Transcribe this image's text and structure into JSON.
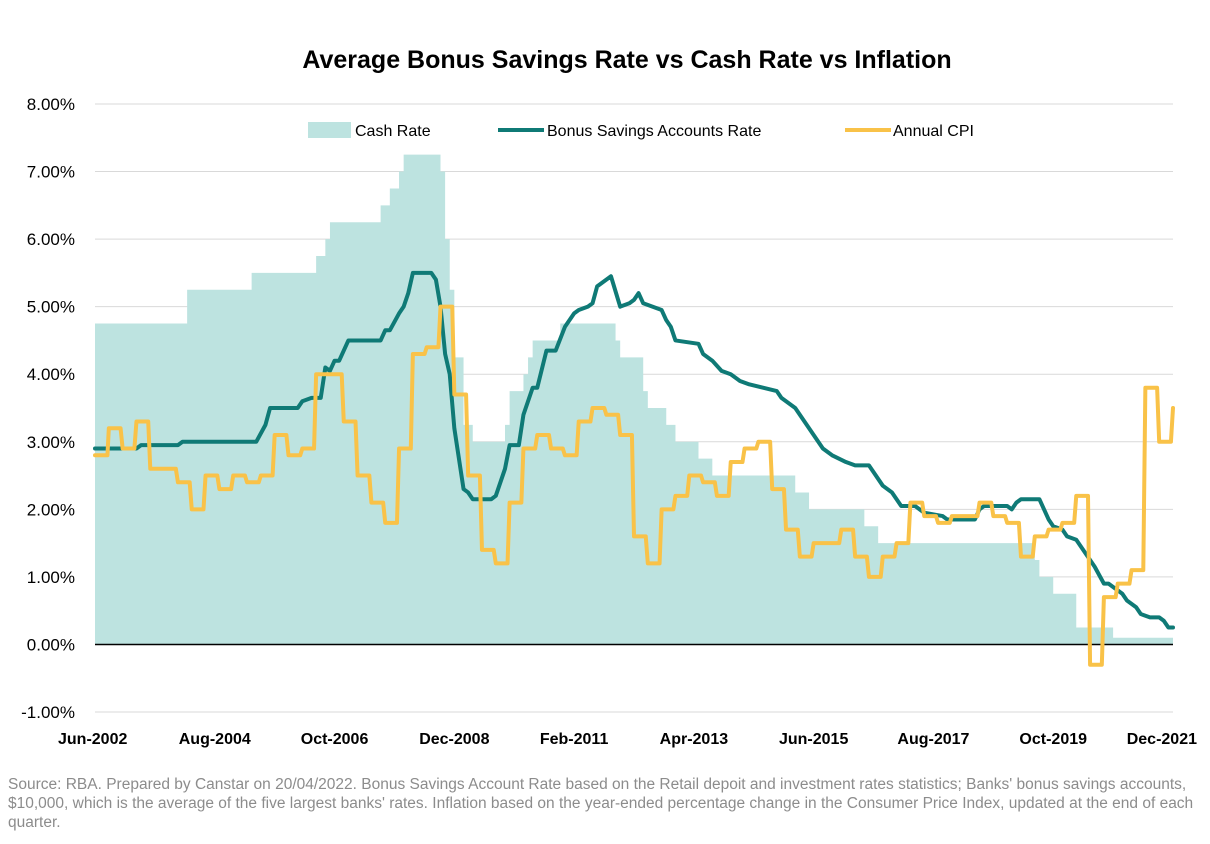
{
  "chart_data": {
    "type": "line",
    "title": "Average Bonus Savings Rate vs Cash Rate vs Inflation",
    "xlabel": "",
    "ylabel": "",
    "ylim": [
      -0.01,
      0.08
    ],
    "y_ticks": [
      {
        "value": -0.01,
        "label": "-1.00%"
      },
      {
        "value": 0.0,
        "label": "0.00%"
      },
      {
        "value": 0.01,
        "label": "1.00%"
      },
      {
        "value": 0.02,
        "label": "2.00%"
      },
      {
        "value": 0.03,
        "label": "3.00%"
      },
      {
        "value": 0.04,
        "label": "4.00%"
      },
      {
        "value": 0.05,
        "label": "5.00%"
      },
      {
        "value": 0.06,
        "label": "6.00%"
      },
      {
        "value": 0.07,
        "label": "7.00%"
      },
      {
        "value": 0.08,
        "label": "8.00%"
      }
    ],
    "x_range": [
      "2002-06",
      "2021-12"
    ],
    "x_ticks": [
      {
        "date": "2002-06",
        "label": "Jun-2002"
      },
      {
        "date": "2004-08",
        "label": "Aug-2004"
      },
      {
        "date": "2006-10",
        "label": "Oct-2006"
      },
      {
        "date": "2008-12",
        "label": "Dec-2008"
      },
      {
        "date": "2011-02",
        "label": "Feb-2011"
      },
      {
        "date": "2013-04",
        "label": "Apr-2013"
      },
      {
        "date": "2015-06",
        "label": "Jun-2015"
      },
      {
        "date": "2017-08",
        "label": "Aug-2017"
      },
      {
        "date": "2019-10",
        "label": "Oct-2019"
      },
      {
        "date": "2021-12",
        "label": "Dec-2021"
      }
    ],
    "grid": true,
    "legend_position": "top",
    "series": [
      {
        "name": "Cash Rate",
        "type": "area",
        "color": "#bde3e0",
        "points": [
          [
            "2002-06",
            0.0475
          ],
          [
            "2003-12",
            0.0475
          ],
          [
            "2004-02",
            0.0525
          ],
          [
            "2005-02",
            0.0525
          ],
          [
            "2005-04",
            0.055
          ],
          [
            "2006-05",
            0.055
          ],
          [
            "2006-06",
            0.0575
          ],
          [
            "2006-08",
            0.06
          ],
          [
            "2006-09",
            0.0625
          ],
          [
            "2007-07",
            0.0625
          ],
          [
            "2007-08",
            0.065
          ],
          [
            "2007-10",
            0.0675
          ],
          [
            "2007-12",
            0.07
          ],
          [
            "2008-01",
            0.0725
          ],
          [
            "2008-08",
            0.0725
          ],
          [
            "2008-09",
            0.07
          ],
          [
            "2008-10",
            0.06
          ],
          [
            "2008-11",
            0.0525
          ],
          [
            "2008-12",
            0.0425
          ],
          [
            "2009-02",
            0.0325
          ],
          [
            "2009-04",
            0.03
          ],
          [
            "2009-10",
            0.03
          ],
          [
            "2009-11",
            0.0325
          ],
          [
            "2009-12",
            0.0375
          ],
          [
            "2010-03",
            0.04
          ],
          [
            "2010-04",
            0.0425
          ],
          [
            "2010-05",
            0.045
          ],
          [
            "2010-11",
            0.0475
          ],
          [
            "2011-10",
            0.0475
          ],
          [
            "2011-11",
            0.045
          ],
          [
            "2011-12",
            0.0425
          ],
          [
            "2012-05",
            0.0375
          ],
          [
            "2012-06",
            0.035
          ],
          [
            "2012-10",
            0.0325
          ],
          [
            "2012-12",
            0.03
          ],
          [
            "2013-05",
            0.0275
          ],
          [
            "2013-08",
            0.025
          ],
          [
            "2015-01",
            0.025
          ],
          [
            "2015-02",
            0.0225
          ],
          [
            "2015-05",
            0.02
          ],
          [
            "2016-04",
            0.02
          ],
          [
            "2016-05",
            0.0175
          ],
          [
            "2016-08",
            0.015
          ],
          [
            "2019-05",
            0.015
          ],
          [
            "2019-06",
            0.0125
          ],
          [
            "2019-07",
            0.01
          ],
          [
            "2019-09",
            0.01
          ],
          [
            "2019-10",
            0.0075
          ],
          [
            "2020-02",
            0.0075
          ],
          [
            "2020-03",
            0.0025
          ],
          [
            "2020-10",
            0.0025
          ],
          [
            "2020-11",
            0.001
          ],
          [
            "2021-12",
            0.001
          ]
        ]
      },
      {
        "name": "Bonus Savings Accounts Rate",
        "type": "line",
        "color": "#0f7a76",
        "points": [
          [
            "2002-06",
            0.029
          ],
          [
            "2003-03",
            0.029
          ],
          [
            "2003-04",
            0.0295
          ],
          [
            "2003-12",
            0.0295
          ],
          [
            "2004-01",
            0.03
          ],
          [
            "2005-05",
            0.03
          ],
          [
            "2005-07",
            0.0325
          ],
          [
            "2005-08",
            0.035
          ],
          [
            "2006-02",
            0.035
          ],
          [
            "2006-03",
            0.036
          ],
          [
            "2006-05",
            0.0365
          ],
          [
            "2006-07",
            0.0365
          ],
          [
            "2006-08",
            0.041
          ],
          [
            "2006-09",
            0.0405
          ],
          [
            "2006-10",
            0.042
          ],
          [
            "2006-11",
            0.042
          ],
          [
            "2007-01",
            0.045
          ],
          [
            "2007-08",
            0.045
          ],
          [
            "2007-09",
            0.0465
          ],
          [
            "2007-10",
            0.0465
          ],
          [
            "2007-12",
            0.049
          ],
          [
            "2008-01",
            0.05
          ],
          [
            "2008-02",
            0.052
          ],
          [
            "2008-03",
            0.055
          ],
          [
            "2008-07",
            0.055
          ],
          [
            "2008-08",
            0.054
          ],
          [
            "2008-09",
            0.05
          ],
          [
            "2008-10",
            0.043
          ],
          [
            "2008-11",
            0.04
          ],
          [
            "2008-12",
            0.032
          ],
          [
            "2009-02",
            0.023
          ],
          [
            "2009-03",
            0.0225
          ],
          [
            "2009-04",
            0.0215
          ],
          [
            "2009-08",
            0.0215
          ],
          [
            "2009-09",
            0.022
          ],
          [
            "2009-11",
            0.026
          ],
          [
            "2009-12",
            0.0295
          ],
          [
            "2010-02",
            0.0295
          ],
          [
            "2010-03",
            0.034
          ],
          [
            "2010-05",
            0.038
          ],
          [
            "2010-06",
            0.038
          ],
          [
            "2010-08",
            0.0435
          ],
          [
            "2010-10",
            0.0435
          ],
          [
            "2010-12",
            0.047
          ],
          [
            "2011-02",
            0.049
          ],
          [
            "2011-03",
            0.0495
          ],
          [
            "2011-05",
            0.05
          ],
          [
            "2011-06",
            0.0505
          ],
          [
            "2011-07",
            0.053
          ],
          [
            "2011-08",
            0.0535
          ],
          [
            "2011-09",
            0.054
          ],
          [
            "2011-10",
            0.0545
          ],
          [
            "2011-12",
            0.05
          ],
          [
            "2012-02",
            0.0505
          ],
          [
            "2012-03",
            0.051
          ],
          [
            "2012-04",
            0.052
          ],
          [
            "2012-05",
            0.0505
          ],
          [
            "2012-07",
            0.05
          ],
          [
            "2012-09",
            0.0495
          ],
          [
            "2012-10",
            0.048
          ],
          [
            "2012-11",
            0.047
          ],
          [
            "2012-12",
            0.045
          ],
          [
            "2013-05",
            0.0445
          ],
          [
            "2013-06",
            0.043
          ],
          [
            "2013-08",
            0.042
          ],
          [
            "2013-10",
            0.0405
          ],
          [
            "2013-12",
            0.04
          ],
          [
            "2014-02",
            0.039
          ],
          [
            "2014-04",
            0.0385
          ],
          [
            "2014-07",
            0.038
          ],
          [
            "2014-10",
            0.0375
          ],
          [
            "2014-11",
            0.0365
          ],
          [
            "2015-01",
            0.0355
          ],
          [
            "2015-02",
            0.035
          ],
          [
            "2015-04",
            0.033
          ],
          [
            "2015-06",
            0.031
          ],
          [
            "2015-08",
            0.029
          ],
          [
            "2015-10",
            0.028
          ],
          [
            "2016-01",
            0.027
          ],
          [
            "2016-03",
            0.0265
          ],
          [
            "2016-06",
            0.0265
          ],
          [
            "2016-07",
            0.0255
          ],
          [
            "2016-09",
            0.0235
          ],
          [
            "2016-11",
            0.0225
          ],
          [
            "2017-01",
            0.0205
          ],
          [
            "2017-04",
            0.0205
          ],
          [
            "2017-05",
            0.02
          ],
          [
            "2017-06",
            0.0195
          ],
          [
            "2017-10",
            0.019
          ],
          [
            "2017-11",
            0.0185
          ],
          [
            "2018-05",
            0.0185
          ],
          [
            "2018-06",
            0.02
          ],
          [
            "2018-07",
            0.0205
          ],
          [
            "2018-12",
            0.0205
          ],
          [
            "2019-01",
            0.02
          ],
          [
            "2019-02",
            0.021
          ],
          [
            "2019-03",
            0.0215
          ],
          [
            "2019-07",
            0.0215
          ],
          [
            "2019-08",
            0.02
          ],
          [
            "2019-09",
            0.0185
          ],
          [
            "2019-10",
            0.0175
          ],
          [
            "2019-12",
            0.017
          ],
          [
            "2020-01",
            0.016
          ],
          [
            "2020-03",
            0.0155
          ],
          [
            "2020-05",
            0.0135
          ],
          [
            "2020-07",
            0.0115
          ],
          [
            "2020-09",
            0.009
          ],
          [
            "2020-10",
            0.009
          ],
          [
            "2020-11",
            0.0085
          ],
          [
            "2021-01",
            0.0075
          ],
          [
            "2021-02",
            0.0065
          ],
          [
            "2021-04",
            0.0055
          ],
          [
            "2021-05",
            0.0045
          ],
          [
            "2021-07",
            0.004
          ],
          [
            "2021-09",
            0.004
          ],
          [
            "2021-10",
            0.0035
          ],
          [
            "2021-11",
            0.0025
          ],
          [
            "2021-12",
            0.0025
          ]
        ]
      },
      {
        "name": "Annual CPI",
        "type": "line",
        "color": "#f9c248",
        "points": [
          [
            "2002-06",
            0.028
          ],
          [
            "2002-07",
            0.028
          ],
          [
            "2002-09",
            0.032
          ],
          [
            "2002-12",
            0.029
          ],
          [
            "2003-03",
            0.033
          ],
          [
            "2003-06",
            0.026
          ],
          [
            "2003-09",
            0.026
          ],
          [
            "2003-12",
            0.024
          ],
          [
            "2004-03",
            0.02
          ],
          [
            "2004-06",
            0.025
          ],
          [
            "2004-09",
            0.023
          ],
          [
            "2004-12",
            0.025
          ],
          [
            "2005-03",
            0.024
          ],
          [
            "2005-06",
            0.025
          ],
          [
            "2005-09",
            0.031
          ],
          [
            "2005-12",
            0.028
          ],
          [
            "2006-03",
            0.029
          ],
          [
            "2006-06",
            0.04
          ],
          [
            "2006-09",
            0.04
          ],
          [
            "2006-12",
            0.033
          ],
          [
            "2007-03",
            0.025
          ],
          [
            "2007-06",
            0.021
          ],
          [
            "2007-09",
            0.018
          ],
          [
            "2007-12",
            0.029
          ],
          [
            "2008-03",
            0.043
          ],
          [
            "2008-06",
            0.044
          ],
          [
            "2008-09",
            0.05
          ],
          [
            "2008-12",
            0.037
          ],
          [
            "2009-03",
            0.025
          ],
          [
            "2009-06",
            0.014
          ],
          [
            "2009-09",
            0.012
          ],
          [
            "2009-12",
            0.021
          ],
          [
            "2010-03",
            0.029
          ],
          [
            "2010-06",
            0.031
          ],
          [
            "2010-09",
            0.029
          ],
          [
            "2010-12",
            0.028
          ],
          [
            "2011-03",
            0.033
          ],
          [
            "2011-06",
            0.035
          ],
          [
            "2011-09",
            0.034
          ],
          [
            "2011-12",
            0.031
          ],
          [
            "2012-03",
            0.016
          ],
          [
            "2012-06",
            0.012
          ],
          [
            "2012-09",
            0.02
          ],
          [
            "2012-12",
            0.022
          ],
          [
            "2013-03",
            0.025
          ],
          [
            "2013-06",
            0.024
          ],
          [
            "2013-09",
            0.022
          ],
          [
            "2013-12",
            0.027
          ],
          [
            "2014-03",
            0.029
          ],
          [
            "2014-06",
            0.03
          ],
          [
            "2014-09",
            0.023
          ],
          [
            "2014-12",
            0.017
          ],
          [
            "2015-03",
            0.013
          ],
          [
            "2015-06",
            0.015
          ],
          [
            "2015-09",
            0.015
          ],
          [
            "2015-12",
            0.017
          ],
          [
            "2016-03",
            0.013
          ],
          [
            "2016-06",
            0.01
          ],
          [
            "2016-09",
            0.013
          ],
          [
            "2016-12",
            0.015
          ],
          [
            "2017-03",
            0.021
          ],
          [
            "2017-06",
            0.019
          ],
          [
            "2017-09",
            0.018
          ],
          [
            "2017-12",
            0.019
          ],
          [
            "2018-03",
            0.019
          ],
          [
            "2018-06",
            0.021
          ],
          [
            "2018-09",
            0.019
          ],
          [
            "2018-12",
            0.018
          ],
          [
            "2019-03",
            0.013
          ],
          [
            "2019-06",
            0.016
          ],
          [
            "2019-09",
            0.017
          ],
          [
            "2019-12",
            0.018
          ],
          [
            "2020-03",
            0.022
          ],
          [
            "2020-06",
            -0.003
          ],
          [
            "2020-09",
            0.007
          ],
          [
            "2020-12",
            0.009
          ],
          [
            "2021-03",
            0.011
          ],
          [
            "2021-06",
            0.038
          ],
          [
            "2021-09",
            0.03
          ],
          [
            "2021-12",
            0.035
          ]
        ]
      }
    ]
  },
  "source_note": "Source:  RBA. Prepared by Canstar on 20/04/2022. Bonus Savings Account Rate based on the Retail depoit and investment  rates statistics; Banks' bonus savings accounts, $10,000, which is the average of the five largest banks' rates. Inflation based on the year-ended percentage change in the Consumer Price Index, updated at the end of each quarter."
}
